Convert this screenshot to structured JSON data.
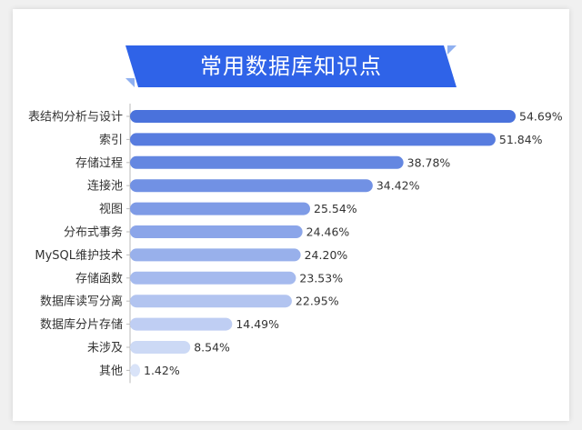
{
  "colors": {
    "banner": "#2f63e8",
    "banner_accent": "#8fb0f0",
    "bar_dark": "#4a72dc",
    "bar_light": "#d9e3f8",
    "axis": "#bbbbbb"
  },
  "chart_data": {
    "type": "bar",
    "orientation": "horizontal",
    "title": "常用数据库知识点",
    "categories": [
      "表结构分析与设计",
      "索引",
      "存储过程",
      "连接池",
      "视图",
      "分布式事务",
      "MySQL维护技术",
      "存储函数",
      "数据库读写分离",
      "数据库分片存储",
      "未涉及",
      "其他"
    ],
    "values": [
      54.69,
      51.84,
      38.78,
      34.42,
      25.54,
      24.46,
      24.2,
      23.53,
      22.95,
      14.49,
      8.54,
      1.42
    ],
    "value_labels": [
      "54.69%",
      "51.84%",
      "38.78%",
      "34.42%",
      "25.54%",
      "24.46%",
      "24.20%",
      "23.53%",
      "22.95%",
      "14.49%",
      "8.54%",
      "1.42%"
    ],
    "xlim": [
      0,
      100
    ],
    "grid": false,
    "legend": "none",
    "xlabel": "",
    "ylabel": ""
  }
}
